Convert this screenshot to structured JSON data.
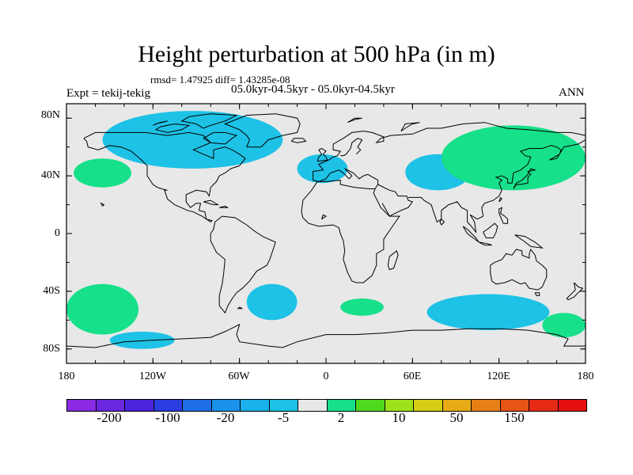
{
  "figure": {
    "title": "Height perturbation at 500 hPa (in m)",
    "stats": "rmsd= 1.47925 diff= 1.43285e-08",
    "left_label": "Expt = tekij-tekig",
    "center_label": "05.0kyr-04.5kyr - 05.0kyr-04.5kyr",
    "right_label": "ANN"
  },
  "map": {
    "projection": "cylindrical equidistant",
    "background_color": "#e8e8e8",
    "lat_labels": [
      "80N",
      "40N",
      "0",
      "40S",
      "80S"
    ],
    "lon_labels": [
      "180",
      "120W",
      "60W",
      "0",
      "60E",
      "120E",
      "180"
    ]
  },
  "anomaly_regions": [
    {
      "name": "Arctic/North America low",
      "color": "#1ec2e6",
      "lon": [
        -155,
        -30
      ],
      "lat": [
        45,
        85
      ]
    },
    {
      "name": "NE Pacific high",
      "color": "#16e08a",
      "lon": [
        -175,
        -135
      ],
      "lat": [
        32,
        52
      ]
    },
    {
      "name": "North Atlantic low",
      "color": "#1ec2e6",
      "lon": [
        -20,
        15
      ],
      "lat": [
        35,
        55
      ]
    },
    {
      "name": "Central Asia low",
      "color": "#1ec2e6",
      "lon": [
        55,
        100
      ],
      "lat": [
        30,
        55
      ]
    },
    {
      "name": "Siberia / NW Pacific high",
      "color": "#16e08a",
      "lon": [
        80,
        180
      ],
      "lat": [
        30,
        75
      ]
    },
    {
      "name": "South Pacific high",
      "color": "#16e08a",
      "lon": [
        -180,
        -130
      ],
      "lat": [
        -70,
        -35
      ]
    },
    {
      "name": "South Atlantic low",
      "color": "#1ec2e6",
      "lon": [
        -55,
        -20
      ],
      "lat": [
        -60,
        -35
      ]
    },
    {
      "name": "Southern Africa high",
      "color": "#16e08a",
      "lon": [
        10,
        40
      ],
      "lat": [
        -57,
        -45
      ]
    },
    {
      "name": "Southern Indian Ocean low",
      "color": "#1ec2e6",
      "lon": [
        70,
        155
      ],
      "lat": [
        -67,
        -42
      ]
    },
    {
      "name": "Amundsen Sea low",
      "color": "#1ec2e6",
      "lon": [
        -150,
        -105
      ],
      "lat": [
        -80,
        -68
      ]
    },
    {
      "name": "Ross Sea high",
      "color": "#16e08a",
      "lon": [
        150,
        180
      ],
      "lat": [
        -72,
        -55
      ]
    }
  ],
  "colorbar": {
    "colors": [
      "#8a2be2",
      "#6a28e0",
      "#4a24dc",
      "#2b3ce0",
      "#1e6fe6",
      "#1a92ea",
      "#1ab0ea",
      "#1ec2e6",
      "#e8e8e8",
      "#16e08a",
      "#4fd81e",
      "#9ee11a",
      "#d6cc16",
      "#e6aa16",
      "#e68016",
      "#e65516",
      "#e62a16",
      "#e60f0f"
    ],
    "labels": [
      "-200",
      "-100",
      "-20",
      "-5",
      "2",
      "10",
      "50",
      "150"
    ]
  }
}
